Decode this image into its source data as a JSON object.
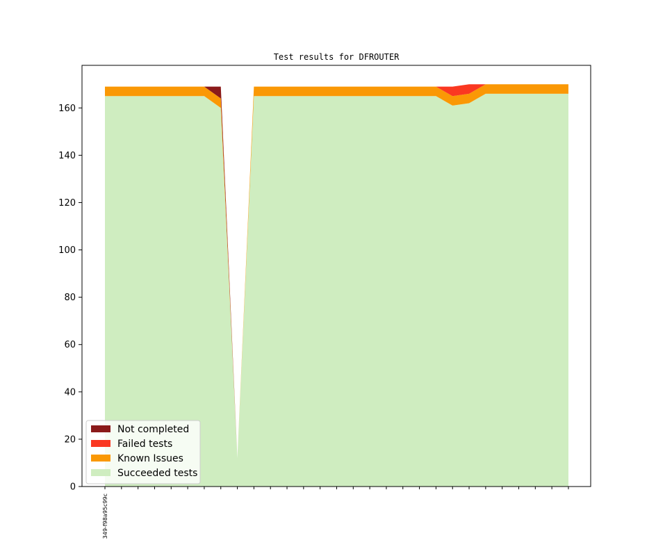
{
  "chart_data": {
    "type": "area",
    "stacked": true,
    "title": "Test results for DFROUTER",
    "xlabel": "",
    "ylabel": "",
    "ylim": [
      0,
      178
    ],
    "yticks": [
      0,
      20,
      40,
      60,
      80,
      100,
      120,
      140,
      160
    ],
    "x_tick_labels": [
      "349-f98a95c99c"
    ],
    "legend_position": "lower left",
    "series": [
      {
        "name": "Succeeded tests",
        "color": "#cfedc0",
        "values": [
          165,
          165,
          165,
          165,
          165,
          165,
          165,
          160,
          12,
          165,
          165,
          165,
          165,
          165,
          165,
          165,
          165,
          165,
          165,
          165,
          165,
          161,
          162,
          166,
          166,
          166,
          166,
          166,
          166
        ]
      },
      {
        "name": "Known Issues",
        "color": "#fa9805",
        "values": [
          4,
          4,
          4,
          4,
          4,
          4,
          4,
          4,
          0,
          4,
          4,
          4,
          4,
          4,
          4,
          4,
          4,
          4,
          4,
          4,
          4,
          4,
          4,
          4,
          4,
          4,
          4,
          4,
          4
        ]
      },
      {
        "name": "Failed tests",
        "color": "#fa3821",
        "values": [
          0,
          0,
          0,
          0,
          0,
          0,
          0,
          0,
          0,
          0,
          0,
          0,
          0,
          0,
          0,
          0,
          0,
          0,
          0,
          0,
          0,
          4,
          4,
          0,
          0,
          0,
          0,
          0,
          0
        ]
      },
      {
        "name": "Not completed",
        "color": "#8b1a1a",
        "values": [
          0,
          0,
          0,
          0,
          0,
          0,
          0,
          5,
          0,
          0,
          0,
          0,
          0,
          0,
          0,
          0,
          0,
          0,
          0,
          0,
          0,
          0,
          0,
          0,
          0,
          0,
          0,
          0,
          0
        ]
      }
    ]
  }
}
